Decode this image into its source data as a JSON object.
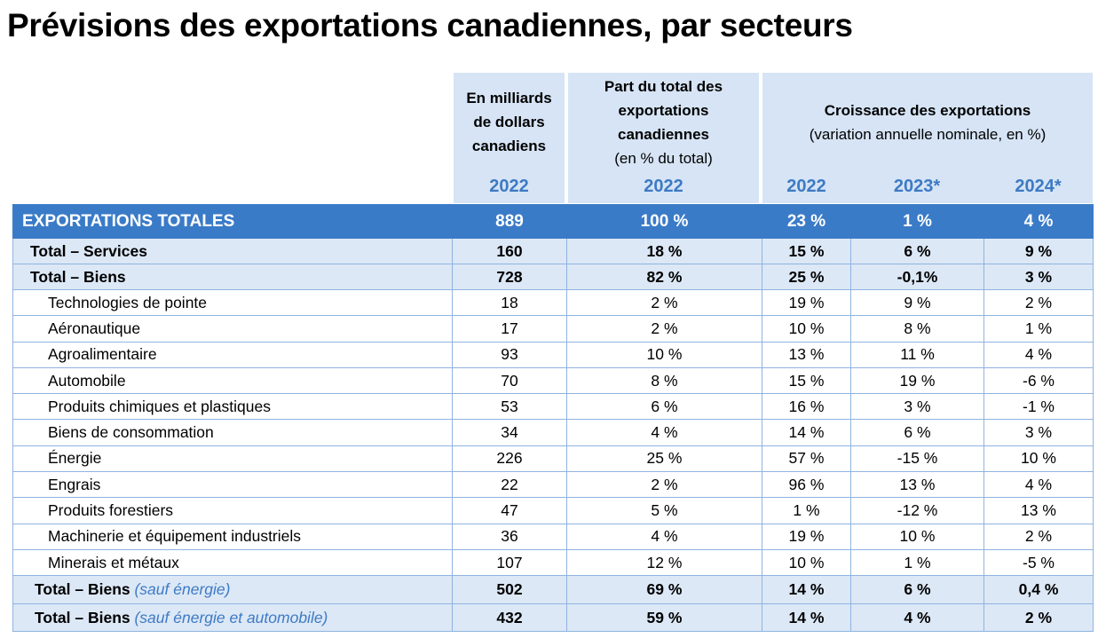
{
  "title": "Prévisions des exportations canadiennes, par secteurs",
  "chart_data": {
    "type": "table",
    "title": "Prévisions des exportations canadiennes, par secteurs",
    "column_groups": {
      "col_value": {
        "line1": "En milliards",
        "line2": "de dollars",
        "line3": "canadiens"
      },
      "col_share": {
        "line1": "Part du total des",
        "line2": "exportations",
        "line3": "canadiennes",
        "line4": "(en % du total)"
      },
      "col_growth": {
        "line1": "Croissance des exportations",
        "line2": "(variation annuelle nominale, en %)"
      }
    },
    "years": [
      "2022",
      "2022",
      "2022",
      "2023*",
      "2024*"
    ],
    "total_row": {
      "label": "EXPORTATIONS TOTALES",
      "values": [
        "889",
        "100 %",
        "23 %",
        "1 %",
        "4 %"
      ]
    },
    "subtotals": [
      {
        "label": "Total  –  Services",
        "values": [
          "160",
          "18 %",
          "15 %",
          "6 %",
          "9 %"
        ]
      },
      {
        "label": "Total   – Biens",
        "values": [
          "728",
          "82 %",
          "25 %",
          "-0,1%",
          "3 %"
        ]
      }
    ],
    "sectors": [
      {
        "label": "Technologies de pointe",
        "values": [
          "18",
          "2 %",
          "19 %",
          "9 %",
          "2 %"
        ]
      },
      {
        "label": "Aéronautique",
        "values": [
          "17",
          "2 %",
          "10 %",
          "8 %",
          "1 %"
        ]
      },
      {
        "label": "Agroalimentaire",
        "values": [
          "93",
          "10 %",
          "13 %",
          "11 %",
          "4 %"
        ]
      },
      {
        "label": "Automobile",
        "values": [
          "70",
          "8 %",
          "15 %",
          "19 %",
          "-6 %"
        ]
      },
      {
        "label": "Produits chimiques et plastiques",
        "values": [
          "53",
          "6 %",
          "16 %",
          "3 %",
          "-1 %"
        ]
      },
      {
        "label": "Biens de consommation",
        "values": [
          "34",
          "4 %",
          "14 %",
          "6 %",
          "3 %"
        ]
      },
      {
        "label": "Énergie",
        "values": [
          "226",
          "25 %",
          "57 %",
          "-15 %",
          "10 %"
        ]
      },
      {
        "label": "Engrais",
        "values": [
          "22",
          "2 %",
          "96 %",
          "13 %",
          "4 %"
        ]
      },
      {
        "label": "Produits forestiers",
        "values": [
          "47",
          "5 %",
          "1 %",
          "-12 %",
          "13 %"
        ]
      },
      {
        "label": "Machinerie et équipement industriels",
        "values": [
          "36",
          "4 %",
          "19 %",
          "10 %",
          "2 %"
        ]
      },
      {
        "label": "Minerais et métaux",
        "values": [
          "107",
          "12 %",
          "10 %",
          "1 %",
          "-5 %"
        ]
      }
    ],
    "footer_rows": [
      {
        "label": "Total  – Biens ",
        "note": "(sauf énergie)",
        "values": [
          "502",
          "69 %",
          "14 %",
          "6 %",
          "0,4 %"
        ]
      },
      {
        "label": "Total – Biens ",
        "note": "(sauf énergie et automobile)",
        "values": [
          "432",
          "59 %",
          "14 %",
          "4 %",
          "2 %"
        ]
      }
    ]
  },
  "colors": {
    "header_band": "#d6e4f5",
    "total_row": "#3a7bc8",
    "accent_text": "#3d7ac4",
    "border": "#8fb3e0"
  }
}
